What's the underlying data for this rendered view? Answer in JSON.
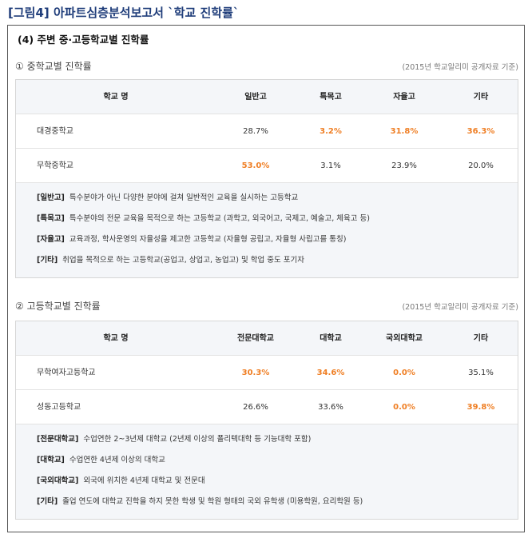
{
  "figure_title": "[그림4] 아파트심층분석보고서 `학교 진학률`",
  "main_title": "(4) 주변 중·고등학교별 진학률",
  "sections": [
    {
      "title": "① 중학교별 진학률",
      "note": "(2015년 학교알리미 공개자료 기준)",
      "headers": [
        "학교 명",
        "일반고",
        "특목고",
        "자율고",
        "기타"
      ],
      "rows": [
        {
          "name": "대경중학교",
          "values": [
            "28.7%",
            "3.2%",
            "31.8%",
            "36.3%"
          ],
          "highlight": [
            false,
            true,
            true,
            true
          ]
        },
        {
          "name": "무학중학교",
          "values": [
            "53.0%",
            "3.1%",
            "23.9%",
            "20.0%"
          ],
          "highlight": [
            true,
            false,
            false,
            false
          ]
        }
      ],
      "legend": [
        {
          "term": "[일반고]",
          "desc": "특수분야가 아닌 다양한 분야에 걸쳐 일반적인 교육을 실시하는 고등학교"
        },
        {
          "term": "[특목고]",
          "desc": "특수분야의 전문 교육을 목적으로 하는 고등학교 (과학고, 외국어고, 국제고, 예술고, 체육고 등)"
        },
        {
          "term": "[자율고]",
          "desc": "교육과정, 학사운영의 자율성을 제고한 고등학교 (자율형 공립고, 자율형 사립고를 통칭)"
        },
        {
          "term": "[기타]",
          "desc": "취업을 목적으로 하는 고등학교(공업고, 상업고, 농업고) 및 학업 중도 포기자"
        }
      ]
    },
    {
      "title": "② 고등학교별 진학률",
      "note": "(2015년 학교알리미 공개자료 기준)",
      "headers": [
        "학교 명",
        "전문대학교",
        "대학교",
        "국외대학교",
        "기타"
      ],
      "rows": [
        {
          "name": "무학여자고등학교",
          "values": [
            "30.3%",
            "34.6%",
            "0.0%",
            "35.1%"
          ],
          "highlight": [
            true,
            true,
            true,
            false
          ]
        },
        {
          "name": "성동고등학교",
          "values": [
            "26.6%",
            "33.6%",
            "0.0%",
            "39.8%"
          ],
          "highlight": [
            false,
            false,
            true,
            true
          ]
        }
      ],
      "legend": [
        {
          "term": "[전문대학교]",
          "desc": "수업연한 2~3년제 대학교 (2년제 이상의 폴리텍대학 등 기능대학 포함)"
        },
        {
          "term": "[대학교]",
          "desc": "수업연한 4년제 이상의 대학교"
        },
        {
          "term": "[국외대학교]",
          "desc": "외국에 위치한 4년제 대학교 및 전문대"
        },
        {
          "term": "[기타]",
          "desc": "졸업 연도에 대학교 진학을 하지 못한 학생 및 학원 형태의 국외 유학생 (미용학원, 요리학원 등)"
        }
      ]
    }
  ],
  "colors": {
    "title": "#1f3d7a",
    "highlight": "#ef7e23",
    "header_bg": "#f4f6f9"
  }
}
